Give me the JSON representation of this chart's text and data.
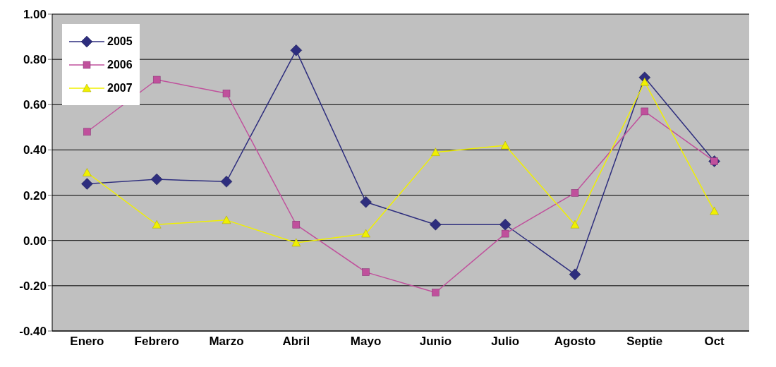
{
  "chart_data": {
    "type": "line",
    "categories": [
      "Enero",
      "Febrero",
      "Marzo",
      "Abril",
      "Mayo",
      "Junio",
      "Julio",
      "Agosto",
      "Septie",
      "Oct"
    ],
    "series": [
      {
        "name": "2005",
        "color": "#2e2e7e",
        "marker": "diamond",
        "values": [
          0.25,
          0.27,
          0.26,
          0.84,
          0.17,
          0.07,
          0.07,
          -0.15,
          0.72,
          0.35
        ]
      },
      {
        "name": "2006",
        "color": "#c0509c",
        "marker": "square",
        "values": [
          0.48,
          0.71,
          0.65,
          0.07,
          -0.14,
          -0.23,
          0.03,
          0.21,
          0.57,
          0.35
        ]
      },
      {
        "name": "2007",
        "color": "#f0f000",
        "marker": "triangle",
        "values": [
          0.3,
          0.07,
          0.09,
          -0.01,
          0.03,
          0.39,
          0.42,
          0.07,
          0.7,
          0.13
        ]
      }
    ],
    "ylim": [
      -0.4,
      1
    ],
    "yticks": [
      {
        "value": -0.4,
        "label": "-0.40"
      },
      {
        "value": -0.2,
        "label": "-0.20"
      },
      {
        "value": 0,
        "label": "0.00"
      },
      {
        "value": 0.2,
        "label": "0.20"
      },
      {
        "value": 0.4,
        "label": "0.40"
      },
      {
        "value": 0.6,
        "label": "0.60"
      },
      {
        "value": 0.8,
        "label": "0.80"
      },
      {
        "value": 1,
        "label": "1.00"
      }
    ],
    "grid": "y",
    "legend": "top left",
    "line_style": "solid"
  }
}
